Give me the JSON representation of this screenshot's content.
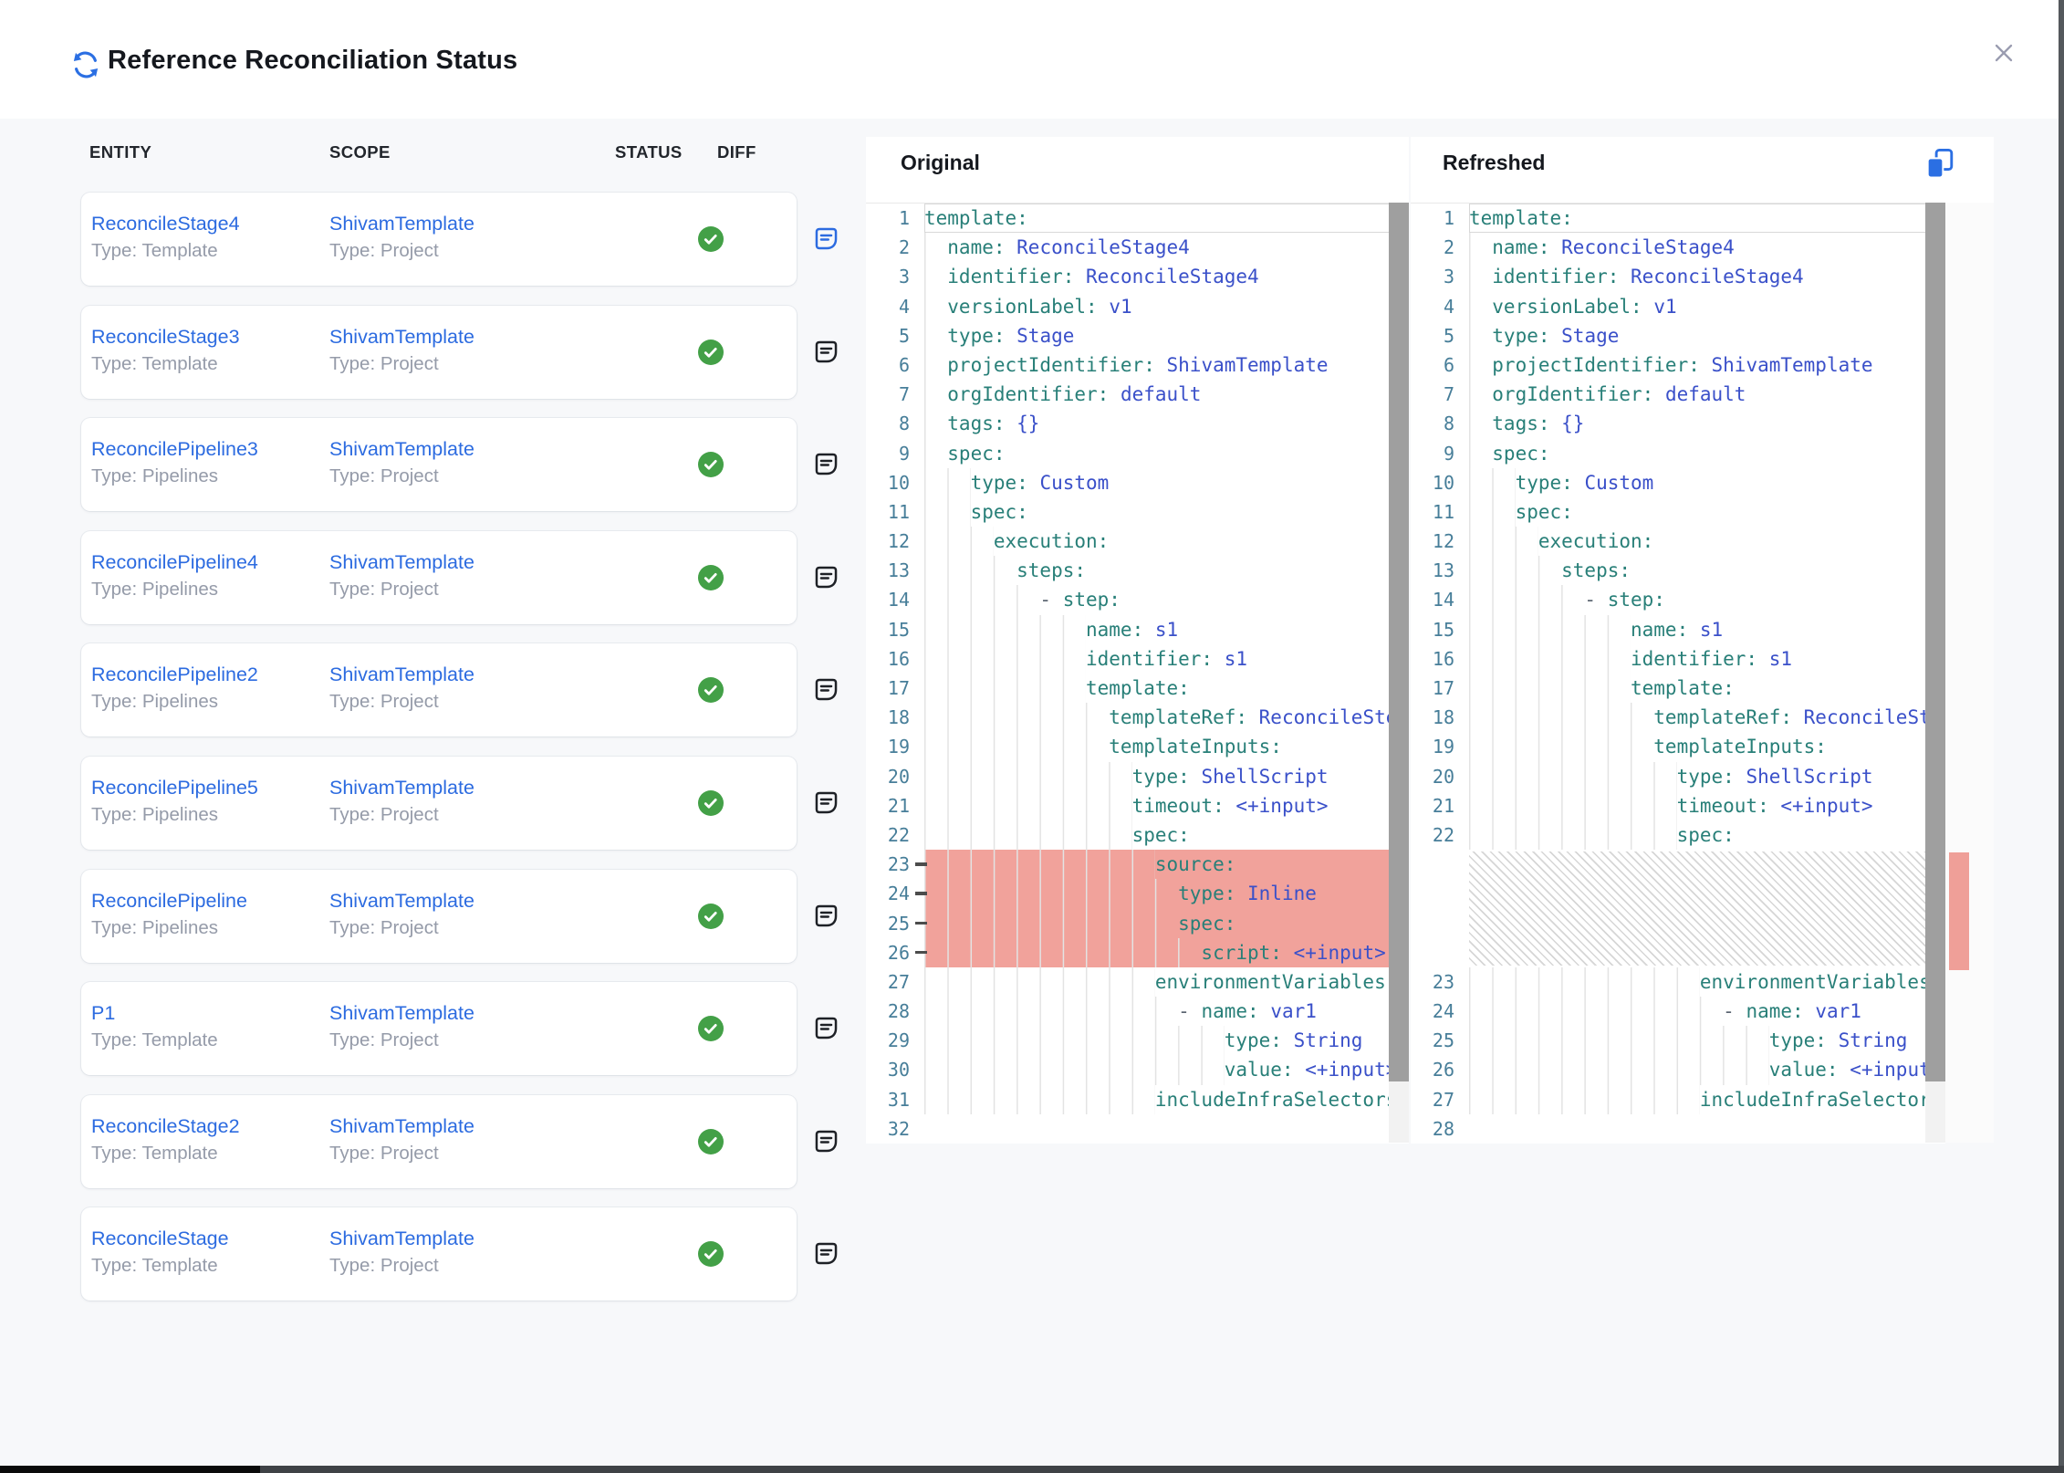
{
  "window": {
    "title": "Reference Reconciliation Status"
  },
  "panels": {
    "original_label": "Original",
    "refreshed_label": "Refreshed"
  },
  "table": {
    "headers": [
      "ENTITY",
      "SCOPE",
      "STATUS",
      "DIFF"
    ],
    "rows": [
      {
        "entity": "ReconcileStage4",
        "entity_type": "Type: Template",
        "scope": "ShivamTemplate",
        "scope_type": "Type: Project",
        "status": "success",
        "diff_active": true
      },
      {
        "entity": "ReconcileStage3",
        "entity_type": "Type: Template",
        "scope": "ShivamTemplate",
        "scope_type": "Type: Project",
        "status": "success",
        "diff_active": false
      },
      {
        "entity": "ReconcilePipeline3",
        "entity_type": "Type: Pipelines",
        "scope": "ShivamTemplate",
        "scope_type": "Type: Project",
        "status": "success",
        "diff_active": false
      },
      {
        "entity": "ReconcilePipeline4",
        "entity_type": "Type: Pipelines",
        "scope": "ShivamTemplate",
        "scope_type": "Type: Project",
        "status": "success",
        "diff_active": false
      },
      {
        "entity": "ReconcilePipeline2",
        "entity_type": "Type: Pipelines",
        "scope": "ShivamTemplate",
        "scope_type": "Type: Project",
        "status": "success",
        "diff_active": false
      },
      {
        "entity": "ReconcilePipeline5",
        "entity_type": "Type: Pipelines",
        "scope": "ShivamTemplate",
        "scope_type": "Type: Project",
        "status": "success",
        "diff_active": false
      },
      {
        "entity": "ReconcilePipeline",
        "entity_type": "Type: Pipelines",
        "scope": "ShivamTemplate",
        "scope_type": "Type: Project",
        "status": "success",
        "diff_active": false
      },
      {
        "entity": "P1",
        "entity_type": "Type: Template",
        "scope": "ShivamTemplate",
        "scope_type": "Type: Project",
        "status": "success",
        "diff_active": false
      },
      {
        "entity": "ReconcileStage2",
        "entity_type": "Type: Template",
        "scope": "ShivamTemplate",
        "scope_type": "Type: Project",
        "status": "success",
        "diff_active": false
      },
      {
        "entity": "ReconcileStage",
        "entity_type": "Type: Template",
        "scope": "ShivamTemplate",
        "scope_type": "Type: Project",
        "status": "success",
        "diff_active": false
      }
    ]
  },
  "colors": {
    "accent_blue": "#2c6be0",
    "success_green": "#43a047",
    "removed_line_bg": "#f1a29b",
    "yaml_key": "#287f78",
    "yaml_value": "#3a50c9",
    "line_number": "#477e99"
  },
  "code": {
    "original": [
      {
        "n": 1,
        "i": 0,
        "cur": 1,
        "t": [
          [
            "k",
            "template:"
          ]
        ]
      },
      {
        "n": 2,
        "i": 2,
        "t": [
          [
            "k",
            "name:"
          ],
          [
            "x",
            " "
          ],
          [
            "v",
            "ReconcileStage4"
          ]
        ]
      },
      {
        "n": 3,
        "i": 2,
        "t": [
          [
            "k",
            "identifier:"
          ],
          [
            "x",
            " "
          ],
          [
            "v",
            "ReconcileStage4"
          ]
        ]
      },
      {
        "n": 4,
        "i": 2,
        "t": [
          [
            "k",
            "versionLabel:"
          ],
          [
            "x",
            " "
          ],
          [
            "v",
            "v1"
          ]
        ]
      },
      {
        "n": 5,
        "i": 2,
        "t": [
          [
            "k",
            "type:"
          ],
          [
            "x",
            " "
          ],
          [
            "v",
            "Stage"
          ]
        ]
      },
      {
        "n": 6,
        "i": 2,
        "t": [
          [
            "k",
            "projectIdentifier:"
          ],
          [
            "x",
            " "
          ],
          [
            "v",
            "ShivamTemplate"
          ]
        ]
      },
      {
        "n": 7,
        "i": 2,
        "t": [
          [
            "k",
            "orgIdentifier:"
          ],
          [
            "x",
            " "
          ],
          [
            "v",
            "default"
          ]
        ]
      },
      {
        "n": 8,
        "i": 2,
        "t": [
          [
            "k",
            "tags:"
          ],
          [
            "x",
            " "
          ],
          [
            "v",
            "{}"
          ]
        ]
      },
      {
        "n": 9,
        "i": 2,
        "t": [
          [
            "k",
            "spec:"
          ]
        ]
      },
      {
        "n": 10,
        "i": 4,
        "t": [
          [
            "k",
            "type:"
          ],
          [
            "x",
            " "
          ],
          [
            "v",
            "Custom"
          ]
        ]
      },
      {
        "n": 11,
        "i": 4,
        "t": [
          [
            "k",
            "spec:"
          ]
        ]
      },
      {
        "n": 12,
        "i": 6,
        "t": [
          [
            "k",
            "execution:"
          ]
        ]
      },
      {
        "n": 13,
        "i": 8,
        "t": [
          [
            "k",
            "steps:"
          ]
        ]
      },
      {
        "n": 14,
        "i": 10,
        "t": [
          [
            "d",
            "- "
          ],
          [
            "k",
            "step:"
          ]
        ]
      },
      {
        "n": 15,
        "i": 14,
        "t": [
          [
            "k",
            "name:"
          ],
          [
            "x",
            " "
          ],
          [
            "v",
            "s1"
          ]
        ]
      },
      {
        "n": 16,
        "i": 14,
        "t": [
          [
            "k",
            "identifier:"
          ],
          [
            "x",
            " "
          ],
          [
            "v",
            "s1"
          ]
        ]
      },
      {
        "n": 17,
        "i": 14,
        "t": [
          [
            "k",
            "template:"
          ]
        ]
      },
      {
        "n": 18,
        "i": 16,
        "t": [
          [
            "k",
            "templateRef:"
          ],
          [
            "x",
            " "
          ],
          [
            "v",
            "ReconcileStep"
          ]
        ]
      },
      {
        "n": 19,
        "i": 16,
        "t": [
          [
            "k",
            "templateInputs:"
          ]
        ]
      },
      {
        "n": 20,
        "i": 18,
        "t": [
          [
            "k",
            "type:"
          ],
          [
            "x",
            " "
          ],
          [
            "v",
            "ShellScript"
          ]
        ]
      },
      {
        "n": 21,
        "i": 18,
        "t": [
          [
            "k",
            "timeout:"
          ],
          [
            "x",
            " "
          ],
          [
            "v",
            "<+input>"
          ]
        ]
      },
      {
        "n": 22,
        "i": 18,
        "t": [
          [
            "k",
            "spec:"
          ]
        ]
      },
      {
        "n": 23,
        "i": 20,
        "r": 1,
        "t": [
          [
            "k",
            "source:"
          ]
        ]
      },
      {
        "n": 24,
        "i": 22,
        "r": 1,
        "t": [
          [
            "k",
            "type:"
          ],
          [
            "x",
            " "
          ],
          [
            "v",
            "Inline"
          ]
        ]
      },
      {
        "n": 25,
        "i": 22,
        "r": 1,
        "t": [
          [
            "k",
            "spec:"
          ]
        ]
      },
      {
        "n": 26,
        "i": 24,
        "r": 1,
        "t": [
          [
            "k",
            "script:"
          ],
          [
            "x",
            " "
          ],
          [
            "v",
            "<+input>"
          ]
        ]
      },
      {
        "n": 27,
        "i": 20,
        "t": [
          [
            "k",
            "environmentVariables:"
          ]
        ]
      },
      {
        "n": 28,
        "i": 22,
        "t": [
          [
            "d",
            "- "
          ],
          [
            "k",
            "name:"
          ],
          [
            "x",
            " "
          ],
          [
            "v",
            "var1"
          ]
        ]
      },
      {
        "n": 29,
        "i": 26,
        "t": [
          [
            "k",
            "type:"
          ],
          [
            "x",
            " "
          ],
          [
            "v",
            "String"
          ]
        ]
      },
      {
        "n": 30,
        "i": 26,
        "t": [
          [
            "k",
            "value:"
          ],
          [
            "x",
            " "
          ],
          [
            "v",
            "<+input>"
          ]
        ]
      },
      {
        "n": 31,
        "i": 20,
        "t": [
          [
            "k",
            "includeInfraSelectors:"
          ]
        ]
      },
      {
        "n": 32,
        "i": 0,
        "t": []
      }
    ],
    "refreshed": [
      {
        "n": 1,
        "i": 0,
        "cur": 1,
        "t": [
          [
            "k",
            "template:"
          ]
        ]
      },
      {
        "n": 2,
        "i": 2,
        "t": [
          [
            "k",
            "name:"
          ],
          [
            "x",
            " "
          ],
          [
            "v",
            "ReconcileStage4"
          ]
        ]
      },
      {
        "n": 3,
        "i": 2,
        "t": [
          [
            "k",
            "identifier:"
          ],
          [
            "x",
            " "
          ],
          [
            "v",
            "ReconcileStage4"
          ]
        ]
      },
      {
        "n": 4,
        "i": 2,
        "t": [
          [
            "k",
            "versionLabel:"
          ],
          [
            "x",
            " "
          ],
          [
            "v",
            "v1"
          ]
        ]
      },
      {
        "n": 5,
        "i": 2,
        "t": [
          [
            "k",
            "type:"
          ],
          [
            "x",
            " "
          ],
          [
            "v",
            "Stage"
          ]
        ]
      },
      {
        "n": 6,
        "i": 2,
        "t": [
          [
            "k",
            "projectIdentifier:"
          ],
          [
            "x",
            " "
          ],
          [
            "v",
            "ShivamTemplate"
          ]
        ]
      },
      {
        "n": 7,
        "i": 2,
        "t": [
          [
            "k",
            "orgIdentifier:"
          ],
          [
            "x",
            " "
          ],
          [
            "v",
            "default"
          ]
        ]
      },
      {
        "n": 8,
        "i": 2,
        "t": [
          [
            "k",
            "tags:"
          ],
          [
            "x",
            " "
          ],
          [
            "v",
            "{}"
          ]
        ]
      },
      {
        "n": 9,
        "i": 2,
        "t": [
          [
            "k",
            "spec:"
          ]
        ]
      },
      {
        "n": 10,
        "i": 4,
        "t": [
          [
            "k",
            "type:"
          ],
          [
            "x",
            " "
          ],
          [
            "v",
            "Custom"
          ]
        ]
      },
      {
        "n": 11,
        "i": 4,
        "t": [
          [
            "k",
            "spec:"
          ]
        ]
      },
      {
        "n": 12,
        "i": 6,
        "t": [
          [
            "k",
            "execution:"
          ]
        ]
      },
      {
        "n": 13,
        "i": 8,
        "t": [
          [
            "k",
            "steps:"
          ]
        ]
      },
      {
        "n": 14,
        "i": 10,
        "t": [
          [
            "d",
            "- "
          ],
          [
            "k",
            "step:"
          ]
        ]
      },
      {
        "n": 15,
        "i": 14,
        "t": [
          [
            "k",
            "name:"
          ],
          [
            "x",
            " "
          ],
          [
            "v",
            "s1"
          ]
        ]
      },
      {
        "n": 16,
        "i": 14,
        "t": [
          [
            "k",
            "identifier:"
          ],
          [
            "x",
            " "
          ],
          [
            "v",
            "s1"
          ]
        ]
      },
      {
        "n": 17,
        "i": 14,
        "t": [
          [
            "k",
            "template:"
          ]
        ]
      },
      {
        "n": 18,
        "i": 16,
        "t": [
          [
            "k",
            "templateRef:"
          ],
          [
            "x",
            " "
          ],
          [
            "v",
            "ReconcileStep"
          ]
        ]
      },
      {
        "n": 19,
        "i": 16,
        "t": [
          [
            "k",
            "templateInputs:"
          ]
        ]
      },
      {
        "n": 20,
        "i": 18,
        "t": [
          [
            "k",
            "type:"
          ],
          [
            "x",
            " "
          ],
          [
            "v",
            "ShellScript"
          ]
        ]
      },
      {
        "n": 21,
        "i": 18,
        "t": [
          [
            "k",
            "timeout:"
          ],
          [
            "x",
            " "
          ],
          [
            "v",
            "<+input>"
          ]
        ]
      },
      {
        "n": 22,
        "i": 18,
        "t": [
          [
            "k",
            "spec:"
          ]
        ]
      },
      {
        "sp": 4
      },
      {
        "n": 23,
        "i": 20,
        "t": [
          [
            "k",
            "environmentVariables:"
          ]
        ]
      },
      {
        "n": 24,
        "i": 22,
        "t": [
          [
            "d",
            "- "
          ],
          [
            "k",
            "name:"
          ],
          [
            "x",
            " "
          ],
          [
            "v",
            "var1"
          ]
        ]
      },
      {
        "n": 25,
        "i": 26,
        "t": [
          [
            "k",
            "type:"
          ],
          [
            "x",
            " "
          ],
          [
            "v",
            "String"
          ]
        ]
      },
      {
        "n": 26,
        "i": 26,
        "t": [
          [
            "k",
            "value:"
          ],
          [
            "x",
            " "
          ],
          [
            "v",
            "<+input>"
          ]
        ]
      },
      {
        "n": 27,
        "i": 20,
        "t": [
          [
            "k",
            "includeInfraSelectors:"
          ]
        ]
      },
      {
        "n": 28,
        "i": 0,
        "t": []
      }
    ]
  }
}
